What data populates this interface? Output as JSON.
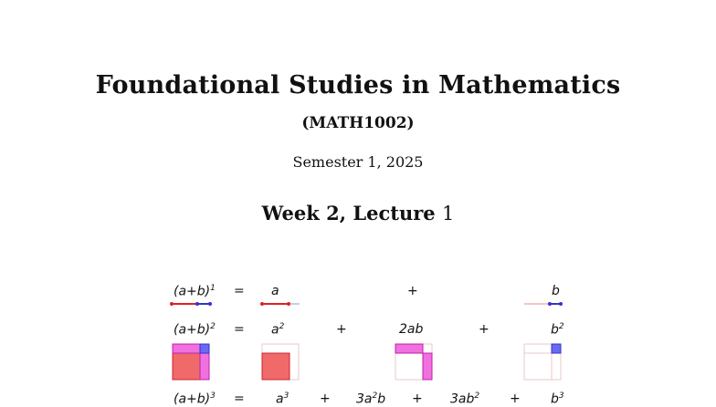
{
  "header": {
    "title": "Foundational Studies in Mathematics",
    "course_code": "(MATH1002)",
    "semester": "Semester 1, 2025",
    "week_label": "Week 2, Lecture",
    "lecture_number": "1"
  },
  "figure": {
    "row1": {
      "lhs": "(a+b)",
      "lhs_exp": "1",
      "eq": "=",
      "t1": "a",
      "plus": "+",
      "t2": "b"
    },
    "row2": {
      "lhs": "(a+b)",
      "lhs_exp": "2",
      "eq": "=",
      "t1": "a",
      "t1_exp": "2",
      "plus1": "+",
      "t2": "2ab",
      "plus2": "+",
      "t3": "b",
      "t3_exp": "2"
    },
    "row3": {
      "lhs": "(a+b)",
      "lhs_exp": "3",
      "eq": "=",
      "t1": "a",
      "t1_exp": "3",
      "plus1": "+",
      "t2": "3a",
      "t2_exp": "2",
      "t2_tail": "b",
      "plus2": "+",
      "t3": "3ab",
      "t3_exp": "2",
      "plus3": "+",
      "t4": "b",
      "t4_exp": "3"
    },
    "colors": {
      "a_color": "#f06a6a",
      "b_color": "#6a6af0",
      "ab_color": "#f070e0",
      "line_red": "#d22",
      "line_blue": "#33c"
    }
  }
}
